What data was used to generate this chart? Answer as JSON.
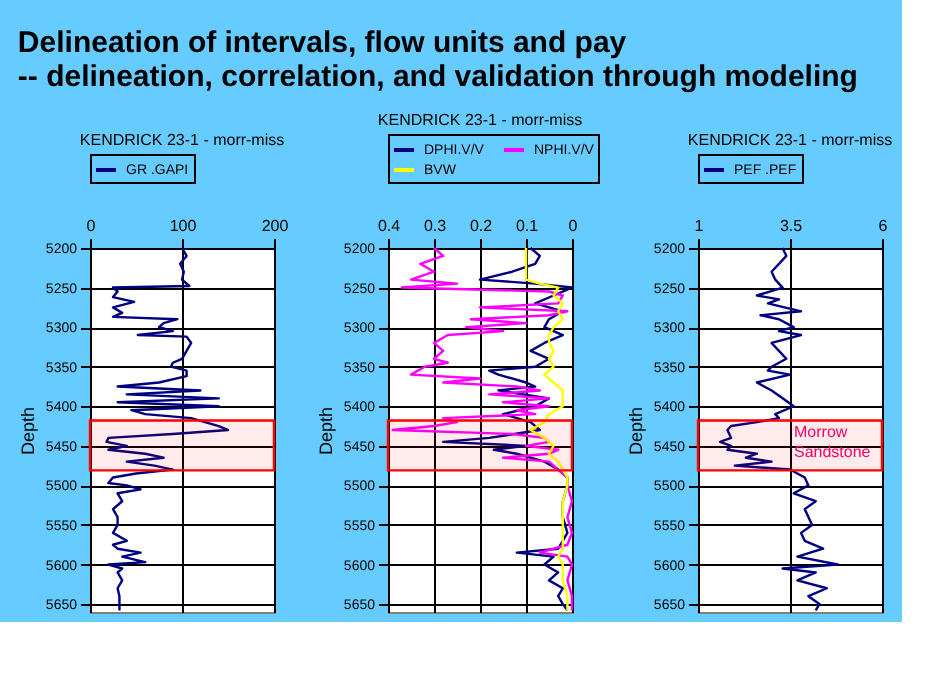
{
  "chart_data": [
    {
      "type": "line",
      "title": "KENDRICK 23-1 - morr-miss",
      "annotations": [
        "Delineation of intervals, flow units and pay",
        " -- delineation, correlation, and validation through modeling"
      ],
      "ylabel": "Depth",
      "xlim": [
        0,
        200
      ],
      "xticks": [
        0,
        100,
        200
      ],
      "ylim": [
        5660,
        5200
      ],
      "yticks": [
        5200,
        5250,
        5300,
        5350,
        5400,
        5450,
        5500,
        5550,
        5600,
        5650
      ],
      "grid": true,
      "legend": "top",
      "bands": [
        {
          "axis": "y",
          "from": 5418,
          "to": 5481,
          "color": "#ff0000"
        }
      ],
      "series": [
        {
          "name": "GR .GAPI",
          "color": "#000080",
          "x": [
            100,
            105,
            98,
            102,
            100,
            108,
            25,
            30,
            25,
            48,
            25,
            35,
            25,
            95,
            80,
            75,
            90,
            52,
            105,
            110,
            105,
            100,
            90,
            88,
            105,
            105,
            75,
            30,
            120,
            40,
            140,
            30,
            140,
            45,
            60,
            110,
            125,
            140,
            150,
            90,
            20,
            18,
            40,
            20,
            60,
            80,
            40,
            70,
            90,
            50,
            25,
            20,
            40,
            55,
            30,
            35,
            25,
            30,
            30,
            25,
            40,
            25,
            30,
            55,
            35,
            60,
            20,
            35,
            30,
            35,
            30,
            32,
            32,
            32
          ],
          "values": [
            5200,
            5210,
            5220,
            5230,
            5240,
            5248,
            5250,
            5255,
            5262,
            5268,
            5275,
            5282,
            5287,
            5290,
            5295,
            5300,
            5305,
            5310,
            5312,
            5320,
            5330,
            5340,
            5345,
            5350,
            5355,
            5362,
            5370,
            5375,
            5380,
            5385,
            5390,
            5395,
            5400,
            5405,
            5410,
            5415,
            5420,
            5425,
            5430,
            5435,
            5440,
            5445,
            5450,
            5455,
            5460,
            5465,
            5470,
            5475,
            5480,
            5485,
            5490,
            5497,
            5500,
            5505,
            5510,
            5520,
            5530,
            5540,
            5550,
            5560,
            5570,
            5575,
            5580,
            5585,
            5590,
            5597,
            5600,
            5605,
            5610,
            5620,
            5630,
            5640,
            5650,
            5658
          ]
        }
      ]
    },
    {
      "type": "line",
      "title": "KENDRICK 23-1 - morr-miss",
      "ylabel": "Depth",
      "xlim": [
        0.4,
        0
      ],
      "xticks": [
        0.4,
        0.3,
        0.2,
        0.1,
        0
      ],
      "ylim": [
        5660,
        5200
      ],
      "yticks": [
        5200,
        5250,
        5300,
        5350,
        5400,
        5450,
        5500,
        5550,
        5600,
        5650
      ],
      "grid": true,
      "legend": "top",
      "bands": [
        {
          "axis": "y",
          "from": 5418,
          "to": 5481,
          "color": "#ff0000"
        }
      ],
      "series": [
        {
          "name": "DPHI.V/V",
          "color": "#000080",
          "x": [
            0.09,
            0.07,
            0.08,
            0.13,
            0.2,
            0.08,
            0.0,
            0.04,
            0.08,
            0.02,
            0.05,
            0.06,
            0.02,
            0.06,
            0.09,
            0.05,
            0.08,
            0.18,
            0.16,
            0.1,
            0.08,
            0.16,
            0.05,
            0.08,
            0.15,
            0.09,
            0.07,
            0.18,
            0.28,
            0.1,
            0.17,
            0.12,
            0.06,
            0.03,
            0.01,
            0.01,
            0.02,
            0.02,
            0.01,
            0.03,
            0.12,
            0.04,
            0.06,
            0.03,
            0.05,
            0.02,
            0.03,
            0.02,
            0.01
          ],
          "values": [
            5200,
            5210,
            5220,
            5230,
            5240,
            5245,
            5250,
            5260,
            5270,
            5280,
            5290,
            5300,
            5310,
            5320,
            5330,
            5340,
            5350,
            5355,
            5360,
            5370,
            5375,
            5380,
            5390,
            5400,
            5410,
            5420,
            5430,
            5440,
            5445,
            5450,
            5455,
            5460,
            5470,
            5480,
            5490,
            5500,
            5520,
            5540,
            5560,
            5580,
            5585,
            5590,
            5600,
            5610,
            5620,
            5630,
            5640,
            5650,
            5658
          ]
        },
        {
          "name": "NPHI.V/V",
          "color": "#ff00ff",
          "x": [
            0.3,
            0.28,
            0.33,
            0.3,
            0.35,
            0.25,
            0.37,
            0.05,
            0.02,
            0.03,
            0.2,
            0.01,
            0.05,
            0.22,
            0.1,
            0.23,
            0.15,
            0.27,
            0.3,
            0.28,
            0.3,
            0.27,
            0.32,
            0.35,
            0.2,
            0.28,
            0.12,
            0.07,
            0.18,
            0.05,
            0.15,
            0.05,
            0.12,
            0.08,
            0.28,
            0.25,
            0.3,
            0.39,
            0.13,
            0.06,
            0.05,
            0.1,
            0.03,
            0.05,
            0.15,
            0.05,
            0.03,
            0.01,
            0.01,
            0.0,
            0.01,
            0.0,
            0.01,
            0.07,
            0.01,
            0.0,
            0.01,
            0.0,
            0.0
          ],
          "values": [
            5200,
            5210,
            5220,
            5230,
            5240,
            5245,
            5250,
            5255,
            5260,
            5270,
            5275,
            5280,
            5285,
            5290,
            5295,
            5300,
            5305,
            5310,
            5320,
            5330,
            5340,
            5345,
            5350,
            5360,
            5365,
            5370,
            5375,
            5380,
            5385,
            5390,
            5395,
            5400,
            5405,
            5410,
            5415,
            5420,
            5425,
            5430,
            5435,
            5440,
            5445,
            5450,
            5455,
            5460,
            5465,
            5470,
            5480,
            5490,
            5500,
            5520,
            5540,
            5560,
            5575,
            5585,
            5590,
            5600,
            5620,
            5640,
            5658
          ]
        },
        {
          "name": "BVW",
          "color": "#ffff00",
          "x": [
            0.1,
            0.1,
            0.1,
            0.07,
            0.03,
            0.04,
            0.02,
            0.03,
            0.02,
            0.04,
            0.05,
            0.05,
            0.04,
            0.05,
            0.04,
            0.06,
            0.04,
            0.02,
            0.02,
            0.02,
            0.05,
            0.06,
            0.09,
            0.06,
            0.04,
            0.05,
            0.03,
            0.02,
            0.01,
            0.01,
            0.02,
            0.02,
            0.02,
            0.02,
            0.03,
            0.02,
            0.02,
            0.01,
            0.01
          ],
          "values": [
            5200,
            5230,
            5240,
            5245,
            5250,
            5260,
            5270,
            5280,
            5290,
            5300,
            5310,
            5320,
            5330,
            5340,
            5350,
            5360,
            5370,
            5380,
            5390,
            5400,
            5410,
            5420,
            5430,
            5440,
            5450,
            5460,
            5470,
            5480,
            5490,
            5500,
            5520,
            5540,
            5560,
            5580,
            5590,
            5600,
            5620,
            5640,
            5658
          ]
        }
      ]
    },
    {
      "type": "line",
      "title": "KENDRICK 23-1 - morr-miss",
      "ylabel": "Depth",
      "xlim": [
        1,
        6
      ],
      "xticks": [
        1,
        3.5,
        6
      ],
      "ylim": [
        5660,
        5200
      ],
      "yticks": [
        5200,
        5250,
        5300,
        5350,
        5400,
        5450,
        5500,
        5550,
        5600,
        5650
      ],
      "grid": true,
      "legend": "top",
      "bands": [
        {
          "axis": "y",
          "from": 5418,
          "to": 5481,
          "color": "#ff0000",
          "label": "Morrow Sandstone"
        }
      ],
      "series": [
        {
          "name": "PEF .PEF",
          "color": "#000080",
          "x": [
            3.3,
            3.4,
            3.2,
            3.0,
            3.1,
            3.3,
            2.6,
            3.2,
            2.9,
            3.8,
            2.7,
            3.2,
            3.6,
            3.2,
            3.8,
            3.0,
            3.2,
            3.4,
            3.0,
            2.9,
            3.5,
            2.6,
            3.0,
            3.3,
            3.6,
            3.1,
            3.2,
            2.6,
            1.9,
            1.8,
            1.9,
            1.6,
            1.9,
            1.8,
            2.6,
            2.3,
            3.0,
            2.0,
            3.5,
            3.9,
            4.0,
            3.6,
            4.2,
            3.9,
            4.0,
            4.1,
            3.8,
            3.9,
            4.4,
            3.7,
            4.8,
            3.3,
            4.2,
            3.7,
            4.5,
            4.0,
            4.3,
            4.2
          ],
          "values": [
            5200,
            5210,
            5220,
            5230,
            5240,
            5250,
            5260,
            5265,
            5270,
            5280,
            5285,
            5290,
            5300,
            5305,
            5310,
            5320,
            5330,
            5340,
            5350,
            5355,
            5360,
            5370,
            5380,
            5390,
            5400,
            5410,
            5415,
            5420,
            5425,
            5430,
            5440,
            5445,
            5450,
            5455,
            5460,
            5465,
            5470,
            5475,
            5480,
            5490,
            5500,
            5510,
            5520,
            5530,
            5540,
            5550,
            5560,
            5570,
            5580,
            5590,
            5600,
            5605,
            5610,
            5620,
            5630,
            5640,
            5650,
            5658
          ]
        }
      ]
    }
  ]
}
